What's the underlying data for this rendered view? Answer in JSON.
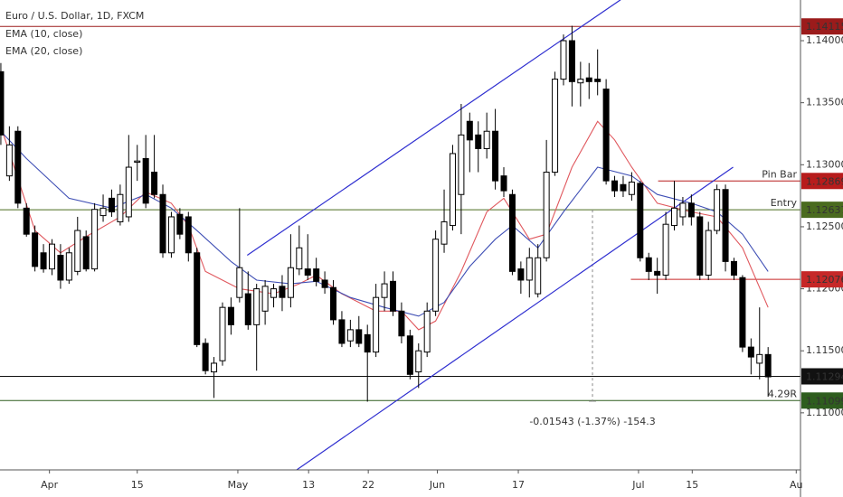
{
  "chart_data": {
    "type": "candlestick",
    "title": "Euro / U.S. Dollar, 1D, FXCM",
    "open": [
      1.1375,
      1.1291,
      1.1327,
      1.1265,
      1.1245,
      1.1229,
      1.1216,
      1.1227,
      1.1207,
      1.1214,
      1.1242,
      1.1216,
      1.1259,
      1.1273,
      1.1254,
      1.1258,
      1.1302,
      1.1305,
      1.1294,
      1.1276,
      1.1229,
      1.126,
      1.1258,
      1.1229,
      1.1156,
      1.1133,
      1.1142,
      1.1185,
      1.1193,
      1.1196,
      1.1171,
      1.1182,
      1.1193,
      1.1202,
      1.1193,
      1.1216,
      1.1216,
      1.1216,
      1.1207,
      1.1201,
      1.1175,
      1.1158,
      1.1167,
      1.1163,
      1.1149,
      1.1193,
      1.1206,
      1.1182,
      1.1162,
      1.1133,
      1.1149,
      1.1182,
      1.1236,
      1.1251,
      1.1276,
      1.1335,
      1.1324,
      1.1313,
      1.1327,
      1.1291,
      1.1276,
      1.1216,
      1.1207,
      1.1196,
      1.1225,
      1.1294,
      1.1369,
      1.14,
      1.1366,
      1.137,
      1.1369,
      1.1361,
      1.1287,
      1.1284,
      1.1276,
      1.1285,
      1.1225,
      1.1214,
      1.1211,
      1.1251,
      1.1258,
      1.1269,
      1.1258,
      1.1211,
      1.1247,
      1.128,
      1.1222,
      1.1209,
      1.1153,
      1.114,
      1.1147
    ],
    "high": [
      1.1382,
      1.1331,
      1.1331,
      1.1269,
      1.1251,
      1.1236,
      1.124,
      1.1236,
      1.1233,
      1.1258,
      1.1247,
      1.1269,
      1.1276,
      1.128,
      1.1284,
      1.1324,
      1.1316,
      1.1324,
      1.1324,
      1.1284,
      1.1262,
      1.1265,
      1.1262,
      1.1233,
      1.116,
      1.1145,
      1.1189,
      1.1193,
      1.1265,
      1.1214,
      1.1204,
      1.1207,
      1.1204,
      1.1211,
      1.1244,
      1.1251,
      1.1244,
      1.1225,
      1.1214,
      1.1207,
      1.1182,
      1.1175,
      1.1178,
      1.1171,
      1.1204,
      1.1214,
      1.1214,
      1.1189,
      1.1167,
      1.1156,
      1.1189,
      1.1247,
      1.128,
      1.1316,
      1.1349,
      1.1342,
      1.1335,
      1.1342,
      1.1345,
      1.1298,
      1.128,
      1.1222,
      1.1233,
      1.1236,
      1.132,
      1.1375,
      1.1405,
      1.1412,
      1.1383,
      1.1382,
      1.1393,
      1.1369,
      1.1291,
      1.1291,
      1.1294,
      1.1287,
      1.1229,
      1.1225,
      1.1262,
      1.1287,
      1.1274,
      1.1276,
      1.1262,
      1.1254,
      1.1284,
      1.1284,
      1.1225,
      1.1211,
      1.116,
      1.1185,
      1.1153
    ],
    "low": [
      1.1316,
      1.1287,
      1.1265,
      1.1242,
      1.1214,
      1.1213,
      1.1211,
      1.12,
      1.1204,
      1.1211,
      1.1214,
      1.1214,
      1.1254,
      1.1258,
      1.1251,
      1.1254,
      1.1287,
      1.1265,
      1.1273,
      1.1225,
      1.1225,
      1.124,
      1.1222,
      1.1153,
      1.1131,
      1.1112,
      1.1138,
      1.1163,
      1.1189,
      1.1167,
      1.1134,
      1.1171,
      1.1185,
      1.1182,
      1.1185,
      1.1211,
      1.1207,
      1.1202,
      1.1196,
      1.1171,
      1.1153,
      1.1153,
      1.1153,
      1.1109,
      1.1145,
      1.1182,
      1.1178,
      1.1156,
      1.1127,
      1.112,
      1.1145,
      1.1178,
      1.1229,
      1.1247,
      1.1244,
      1.1294,
      1.1294,
      1.1305,
      1.128,
      1.1274,
      1.1211,
      1.1196,
      1.1193,
      1.1193,
      1.1222,
      1.1291,
      1.1364,
      1.1347,
      1.1347,
      1.1353,
      1.1356,
      1.1284,
      1.1274,
      1.1274,
      1.1271,
      1.1222,
      1.1207,
      1.1196,
      1.1207,
      1.1247,
      1.1251,
      1.1251,
      1.1207,
      1.1207,
      1.1244,
      1.1214,
      1.1207,
      1.1149,
      1.1131,
      1.1127,
      1.1113
    ],
    "close": [
      1.1324,
      1.1316,
      1.1269,
      1.1244,
      1.1218,
      1.1216,
      1.1236,
      1.1207,
      1.1229,
      1.1247,
      1.1216,
      1.1264,
      1.1265,
      1.1262,
      1.1276,
      1.1298,
      1.1303,
      1.1269,
      1.1276,
      1.1229,
      1.1258,
      1.1244,
      1.1229,
      1.1155,
      1.1134,
      1.114,
      1.1185,
      1.1171,
      1.1217,
      1.1171,
      1.12,
      1.1202,
      1.12,
      1.1193,
      1.1217,
      1.1233,
      1.1211,
      1.1206,
      1.1201,
      1.1175,
      1.1156,
      1.1167,
      1.1156,
      1.1149,
      1.1193,
      1.1204,
      1.1182,
      1.1162,
      1.1131,
      1.115,
      1.1182,
      1.124,
      1.1254,
      1.1309,
      1.1324,
      1.132,
      1.1313,
      1.1327,
      1.1287,
      1.1279,
      1.1214,
      1.1207,
      1.1225,
      1.1225,
      1.1294,
      1.1369,
      1.14,
      1.1367,
      1.1369,
      1.1367,
      1.1367,
      1.1287,
      1.1279,
      1.1279,
      1.1286,
      1.1225,
      1.1214,
      1.1211,
      1.1252,
      1.1265,
      1.1269,
      1.1258,
      1.1211,
      1.1247,
      1.128,
      1.1222,
      1.1211,
      1.1153,
      1.1145,
      1.1147,
      1.1129
    ],
    "up_color": "#ffffff",
    "down_color": "#000000",
    "series": [
      {
        "name": "EMA (10, close)",
        "color": "#e0585e",
        "x": [
          0,
          4,
          7,
          10,
          14,
          17,
          20,
          22,
          24,
          28,
          32,
          35,
          37,
          40,
          44,
          47,
          49,
          51,
          54,
          57,
          59,
          62,
          64,
          67,
          70,
          72,
          74,
          77,
          81,
          84,
          87,
          90
        ],
        "values": [
          1.1331,
          1.1247,
          1.1229,
          1.1242,
          1.1258,
          1.1278,
          1.1269,
          1.1251,
          1.1214,
          1.12,
          1.1196,
          1.1204,
          1.1211,
          1.1196,
          1.1182,
          1.1182,
          1.1167,
          1.1174,
          1.1214,
          1.1262,
          1.1273,
          1.124,
          1.1244,
          1.1298,
          1.1335,
          1.132,
          1.1298,
          1.1269,
          1.1262,
          1.1258,
          1.1233,
          1.1185
        ]
      },
      {
        "name": "EMA (20, close)",
        "color": "#3f4fb5",
        "x": [
          0,
          3,
          8,
          13,
          17,
          20,
          23,
          27,
          30,
          34,
          37,
          41,
          45,
          49,
          52,
          55,
          58,
          60,
          63,
          66,
          70,
          74,
          77,
          81,
          84,
          87,
          90
        ],
        "values": [
          1.1327,
          1.1305,
          1.1273,
          1.1265,
          1.1276,
          1.1265,
          1.1247,
          1.1222,
          1.1207,
          1.1204,
          1.1206,
          1.1193,
          1.1185,
          1.1178,
          1.1189,
          1.1218,
          1.124,
          1.1251,
          1.1233,
          1.1262,
          1.1298,
          1.1291,
          1.1276,
          1.1269,
          1.1262,
          1.1244,
          1.1214
        ]
      }
    ],
    "channels": [
      {
        "color": "#2f2fd0",
        "x": [
          28.9,
          72.7
        ],
        "values": [
          1.1227,
          1.1433
        ]
      },
      {
        "color": "#2f2fd0",
        "x": [
          34.7,
          85.9
        ],
        "values": [
          1.1054,
          1.1298
        ]
      }
    ],
    "levels": [
      {
        "price": 1.14115,
        "color": "#9b1b1b"
      },
      {
        "price": 1.12869,
        "color": "#b71c1c",
        "start": 77.1,
        "text": "Pin Bar"
      },
      {
        "price": 1.12637,
        "color": "#4a6b1f",
        "text": "Entry"
      },
      {
        "price": 1.12076,
        "color": "#c62828",
        "start": 73.9
      },
      {
        "price": 1.11294,
        "color": "#111111"
      },
      {
        "price": 1.11099,
        "color": "#2e5d1e",
        "text": "4.29R"
      }
    ],
    "measure": {
      "x": 69.4,
      "from": 1.12637,
      "to": 1.11094,
      "label": "-0.01543 (-1.37%) -154.3"
    },
    "xlim": [
      -0.1,
      93.8
    ],
    "ylim": [
      1.1054,
      1.14328
    ],
    "xticks": [
      {
        "value": 5.7,
        "label": "Apr"
      },
      {
        "value": 16.0,
        "label": "15"
      },
      {
        "value": 27.8,
        "label": "May"
      },
      {
        "value": 36.1,
        "label": "13"
      },
      {
        "value": 43.1,
        "label": "22"
      },
      {
        "value": 51.2,
        "label": "Jun"
      },
      {
        "value": 60.7,
        "label": "17"
      },
      {
        "value": 74.8,
        "label": "Jul"
      },
      {
        "value": 81.1,
        "label": "15"
      },
      {
        "value": 93.3,
        "label": "Au"
      }
    ],
    "yticks": [
      {
        "value": 1.11,
        "label": "1.11000"
      },
      {
        "value": 1.115,
        "label": "1.11500"
      },
      {
        "value": 1.12,
        "label": "1.12000"
      },
      {
        "value": 1.125,
        "label": "1.12500"
      },
      {
        "value": 1.13,
        "label": "1.13000"
      },
      {
        "value": 1.135,
        "label": "1.13500"
      },
      {
        "value": 1.14,
        "label": "1.14000"
      }
    ]
  }
}
